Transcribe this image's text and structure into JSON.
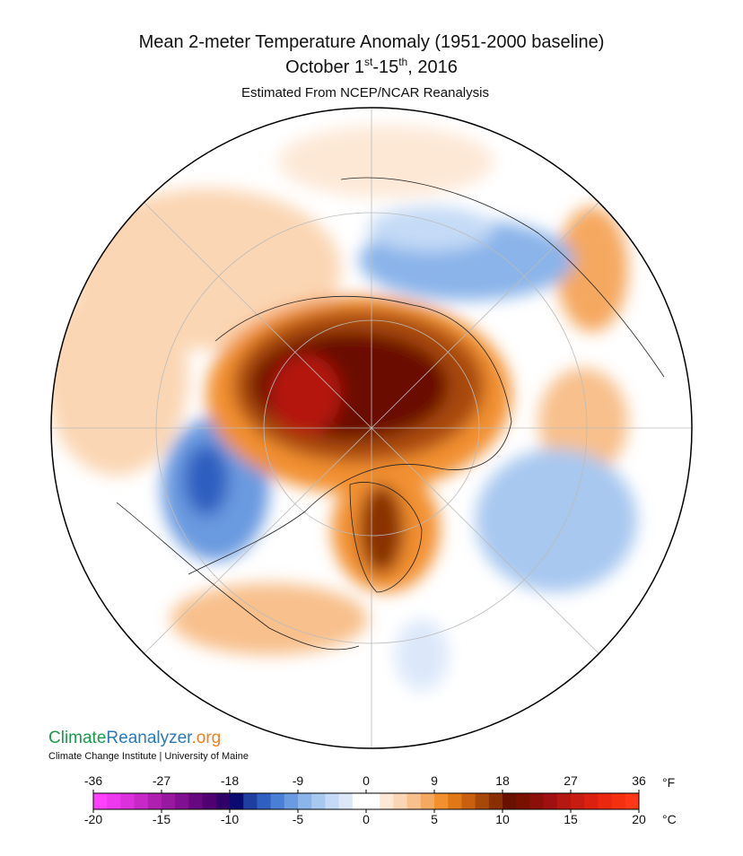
{
  "header": {
    "title": "Mean 2-meter Temperature Anomaly (1951-2000 baseline)",
    "date_parts": [
      "October 1",
      "st",
      "-15",
      "th",
      ", 2016"
    ],
    "subtitle": "Estimated From NCEP/NCAR Reanalysis"
  },
  "logo": {
    "parts": [
      "Climate",
      "Reanalyzer",
      ".org"
    ],
    "institute": "Climate Change Institute | University of Maine"
  },
  "colorbar": {
    "clim": [
      -20,
      20
    ],
    "flim": [
      -36,
      36
    ],
    "celsius_ticks": [
      -20,
      -15,
      -10,
      -5,
      0,
      5,
      10,
      15,
      20
    ],
    "fahrenheit_ticks": [
      -36,
      -27,
      -18,
      -9,
      0,
      9,
      18,
      27,
      36
    ],
    "fahrenheit_unit": "°F",
    "celsius_unit": "°C",
    "colors": [
      "#ff40ff",
      "#ee38ee",
      "#dc30dc",
      "#c828c8",
      "#b020b0",
      "#9818a0",
      "#801090",
      "#680880",
      "#500070",
      "#300068",
      "#0a0a70",
      "#1f3fa0",
      "#2f5fc0",
      "#4a7fd6",
      "#6a9ae0",
      "#8ab4ea",
      "#a8c8f0",
      "#c4daf6",
      "#dce8fa",
      "#ffffff",
      "#ffffff",
      "#fde8d6",
      "#fbd6b4",
      "#f8c08c",
      "#f5a860",
      "#f29030",
      "#e07818",
      "#c86010",
      "#a84808",
      "#8a3000",
      "#6a1000",
      "#7a1000",
      "#8c1008",
      "#a01010",
      "#b41810",
      "#c81c10",
      "#dc2010",
      "#ea2810",
      "#f53010",
      "#ff3818"
    ]
  }
}
